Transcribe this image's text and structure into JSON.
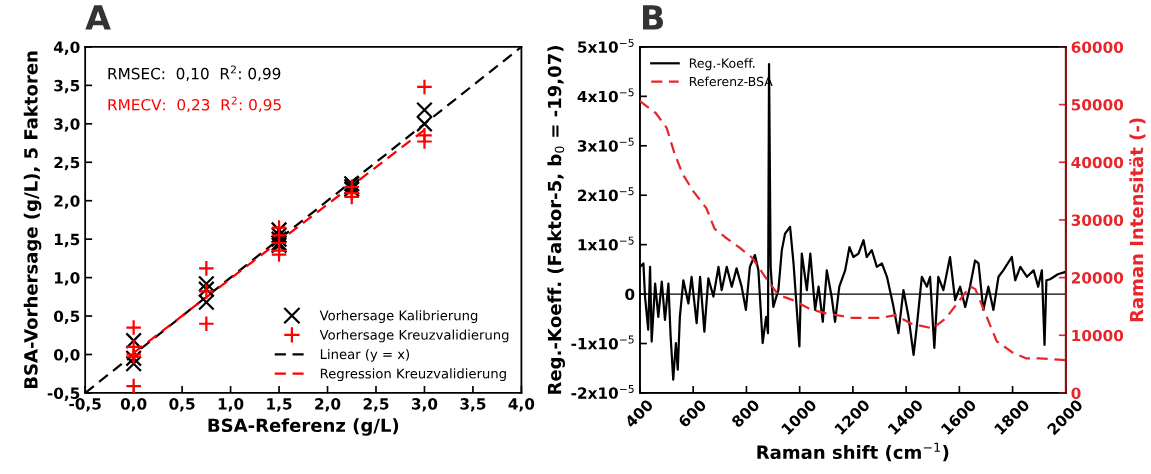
{
  "chart_data": [
    {
      "type": "scatter",
      "title": "A",
      "xlabel": "BSA-Referenz (g/L)",
      "ylabel": "BSA-Vorhersage (g/L), 5 Faktoren",
      "annotations": [
        "RMSEC:  0,10  R$^{2}$: 0,99",
        "RMECV:  0,23  R$^{2}$: 0,95"
      ],
      "xlim": [
        -0.5,
        4
      ],
      "ylim": [
        -0.5,
        4
      ],
      "xticks": [
        {
          "value": -0.5,
          "label": "-0,5"
        },
        {
          "value": 0,
          "label": "0,0"
        },
        {
          "value": 0.5,
          "label": "0,5"
        },
        {
          "value": 1,
          "label": "1,0"
        },
        {
          "value": 1.5,
          "label": "1,5"
        },
        {
          "value": 2,
          "label": "2,0"
        },
        {
          "value": 2.5,
          "label": "2,5"
        },
        {
          "value": 3,
          "label": "3,0"
        },
        {
          "value": 3.5,
          "label": "3,5"
        },
        {
          "value": 4,
          "label": "4,0"
        }
      ],
      "yticks": [
        {
          "value": -0.5,
          "label": "-0,5"
        },
        {
          "value": 0,
          "label": "0,0"
        },
        {
          "value": 0.5,
          "label": "0,5"
        },
        {
          "value": 1,
          "label": "1,0"
        },
        {
          "value": 1.5,
          "label": "1,5"
        },
        {
          "value": 2,
          "label": "2,0"
        },
        {
          "value": 2.5,
          "label": "2,5"
        },
        {
          "value": 3,
          "label": "3,0"
        },
        {
          "value": 3.5,
          "label": "3,5"
        },
        {
          "value": 4,
          "label": "4,0"
        }
      ],
      "grid": false,
      "legend": "bottom right",
      "series": [
        {
          "name": "Vorhersage Kalibrierung",
          "type": "scatter",
          "marker": "cross",
          "color": "#000000",
          "x": [
            0,
            0,
            0,
            0.75,
            0.75,
            0.75,
            1.5,
            1.5,
            1.5,
            1.5,
            1.5,
            2.25,
            2.25,
            2.25,
            3,
            3
          ],
          "values": [
            0.18,
            -0.05,
            -0.12,
            0.92,
            0.85,
            0.68,
            1.62,
            1.55,
            1.5,
            1.45,
            1.42,
            2.22,
            2.18,
            2.15,
            3.18,
            3.0
          ]
        },
        {
          "name": "Vorhersage Kreuzvalidierung",
          "type": "scatter",
          "marker": "plus",
          "color": "#ff0000",
          "x": [
            0,
            0,
            0,
            0,
            0,
            0.75,
            0.75,
            0.75,
            1.5,
            1.5,
            1.5,
            1.5,
            1.5,
            2.25,
            2.25,
            2.25,
            3,
            3,
            3
          ],
          "values": [
            0.35,
            0.1,
            0.0,
            -0.03,
            -0.41,
            1.12,
            0.82,
            0.4,
            1.65,
            1.55,
            1.45,
            1.35,
            1.3,
            2.18,
            2.1,
            2.05,
            3.48,
            2.85,
            2.77
          ]
        },
        {
          "name": "Linear (y = x)",
          "type": "line",
          "line_style": "dashed",
          "color": "#000000",
          "x": [
            -0.5,
            4
          ],
          "values": [
            -0.5,
            4
          ]
        },
        {
          "name": "Regression Kreuzvalidierung",
          "type": "line",
          "line_style": "dashed",
          "color": "#ff0000",
          "x": [
            0,
            3
          ],
          "values": [
            0.02,
            2.92
          ]
        }
      ]
    },
    {
      "type": "line",
      "title": "B",
      "xlabel": "Raman shift (cm$^{−1}$)",
      "ylabel": "Reg.-Koeff. (Faktor-5, b$_{0}$ = -19,07)",
      "y2label": "Raman Intensität (-)",
      "xlim": [
        400,
        2000
      ],
      "xticks": [
        400,
        600,
        800,
        1000,
        1200,
        1400,
        1600,
        1800,
        2000
      ],
      "ylim": [
        -2e-05,
        5e-05
      ],
      "yticks": [
        {
          "value": -2e-05,
          "label": "-2x10$^{−5}$"
        },
        {
          "value": -1e-05,
          "label": "-1x10$^{−5}$"
        },
        {
          "value": 0,
          "label": "0"
        },
        {
          "value": 1e-05,
          "label": "1x10$^{−5}$"
        },
        {
          "value": 2e-05,
          "label": "2x10$^{−5}$"
        },
        {
          "value": 3e-05,
          "label": "3x10$^{−5}$"
        },
        {
          "value": 4e-05,
          "label": "4x10$^{−5}$"
        },
        {
          "value": 5e-05,
          "label": "5x10$^{−5}$"
        }
      ],
      "y2lim": [
        0,
        60000
      ],
      "y2ticks": [
        0,
        10000,
        20000,
        30000,
        40000,
        50000,
        60000
      ],
      "grid": false,
      "legend": "top left",
      "ref_lines": [
        {
          "axis": "y",
          "value": 0,
          "color": "#000000"
        }
      ],
      "series": [
        {
          "name": "Reg.-Koeff.",
          "color": "#000000",
          "line_style": "solid",
          "x": [
            400,
            413,
            419,
            431,
            438,
            444,
            457,
            469,
            482,
            494,
            507,
            515,
            525,
            535,
            542,
            550,
            563,
            582,
            594,
            613,
            626,
            642,
            657,
            676,
            695,
            707,
            726,
            745,
            763,
            782,
            798,
            813,
            832,
            845,
            861,
            874,
            881,
            885,
            891,
            901,
            920,
            933,
            945,
            964,
            977,
            999,
            1008,
            1027,
            1040,
            1058,
            1071,
            1087,
            1102,
            1120,
            1133,
            1149,
            1171,
            1187,
            1202,
            1221,
            1240,
            1252,
            1271,
            1290,
            1309,
            1328,
            1350,
            1371,
            1390,
            1409,
            1428,
            1440,
            1459,
            1478,
            1490,
            1506,
            1521,
            1540,
            1565,
            1584,
            1603,
            1622,
            1640,
            1659,
            1672,
            1690,
            1709,
            1728,
            1747,
            1765,
            1797,
            1810,
            1829,
            1854,
            1879,
            1896,
            1910,
            1920,
            1927,
            1941,
            1970,
            2000
          ],
          "values": [
            5.5e-06,
            6.2e-06,
            -5e-07,
            -7.2e-06,
            5.5e-06,
            -9.6e-06,
            2.1e-06,
            -4.6e-06,
            2.5e-06,
            -5.2e-06,
            2.1e-06,
            -8.3e-06,
            -1.73e-05,
            -9.9e-06,
            -1.53e-05,
            -4.6e-06,
            2.8e-06,
            -1.9e-06,
            3.5e-06,
            -5.9e-06,
            3.5e-06,
            -7.6e-06,
            3.2e-06,
            -5e-07,
            5.5e-06,
            8e-07,
            5.5e-06,
            1.5e-06,
            5.2e-06,
            1.5e-06,
            -3.2e-06,
            5.5e-06,
            7.9e-06,
            4.8e-06,
            -9.9e-06,
            -4.6e-06,
            -7.9e-06,
            4.65e-05,
            5.5e-06,
            -2.6e-06,
            8e-07,
            8.9e-06,
            1.22e-05,
            1.36e-05,
            6.2e-06,
            -1.06e-05,
            8.2e-06,
            8e-07,
            8.2e-06,
            -3.2e-06,
            1.5e-06,
            -5.6e-06,
            4.8e-06,
            -5e-07,
            -5.6e-06,
            1.5e-06,
            4.8e-06,
            9.5e-06,
            7.5e-06,
            8.2e-06,
            1.09e-05,
            7.5e-06,
            8.9e-06,
            5.5e-06,
            6.2e-06,
            3.5e-06,
            -1.9e-06,
            -7.9e-06,
            8e-07,
            -4.6e-06,
            -1.23e-05,
            -6.6e-06,
            3.5e-06,
            1.5e-06,
            3.5e-06,
            -1.09e-05,
            3.5e-06,
            8e-07,
            7.5e-06,
            -1.2e-06,
            1.5e-06,
            -2.6e-06,
            1.5e-06,
            6.8e-06,
            6.2e-06,
            -3.2e-06,
            1.5e-06,
            -3.2e-06,
            3.5e-06,
            4.8e-06,
            7.5e-06,
            2.8e-06,
            5.5e-06,
            3.5e-06,
            4.8e-06,
            1.5e-06,
            4.8e-06,
            -1.03e-05,
            2.8e-06,
            3e-06,
            4e-06,
            4.5e-06
          ]
        },
        {
          "name": "Referenz-BSA",
          "color": "#e8262a",
          "line_style": "dashed",
          "axis": "y2",
          "x": [
            400,
            460,
            500,
            530,
            560,
            600,
            650,
            680,
            720,
            780,
            820,
            850,
            880,
            920,
            980,
            1040,
            1100,
            1200,
            1300,
            1360,
            1420,
            1500,
            1550,
            1600,
            1640,
            1660,
            1700,
            1740,
            1800,
            1850,
            1900,
            2000
          ],
          "values": [
            50600,
            48500,
            46000,
            41500,
            38000,
            35000,
            32000,
            28500,
            27000,
            25000,
            23500,
            21500,
            19500,
            17000,
            16000,
            14500,
            13800,
            13000,
            13000,
            13500,
            12000,
            11200,
            13000,
            16000,
            18500,
            18000,
            13500,
            9000,
            7000,
            6000,
            6000,
            5700
          ]
        }
      ]
    }
  ]
}
